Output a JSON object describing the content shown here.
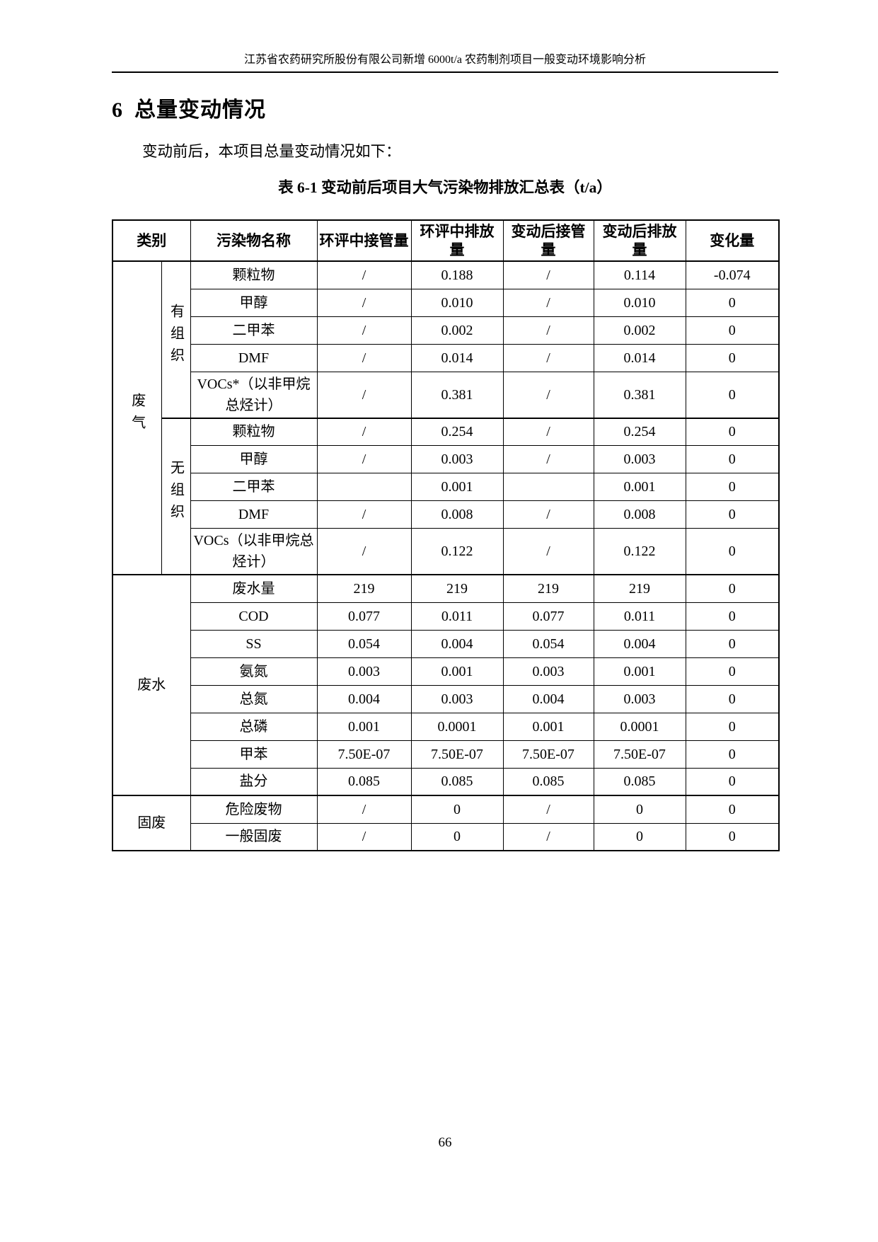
{
  "page_header": {
    "text": "江苏省农药研究所股份有限公司新增 6000t/a 农药制剂项目一般变动环境影响分析"
  },
  "section": {
    "number": "6",
    "title": "总量变动情况"
  },
  "intro_paragraph": "变动前后，本项目总量变动情况如下：",
  "table": {
    "caption": "表 6-1  变动前后项目大气污染物排放汇总表（t/a）",
    "columns": [
      "类别",
      "污染物名称",
      "环评中接管量",
      "环评中排放量",
      "变动后接管量",
      "变动后排放量",
      "变化量"
    ],
    "groups": [
      {
        "category": "废气",
        "vertical": true,
        "subgroups": [
          {
            "label": "有组织",
            "vertical": true,
            "rows": [
              {
                "name": "颗粒物",
                "values": [
                  "/",
                  "0.188",
                  "/",
                  "0.114",
                  "-0.074"
                ]
              },
              {
                "name": "甲醇",
                "values": [
                  "/",
                  "0.010",
                  "/",
                  "0.010",
                  "0"
                ]
              },
              {
                "name": "二甲苯",
                "values": [
                  "/",
                  "0.002",
                  "/",
                  "0.002",
                  "0"
                ]
              },
              {
                "name": "DMF",
                "values": [
                  "/",
                  "0.014",
                  "/",
                  "0.014",
                  "0"
                ]
              },
              {
                "name": "VOCs*（以非甲烷总烃计）",
                "values": [
                  "/",
                  "0.381",
                  "/",
                  "0.381",
                  "0"
                ]
              }
            ]
          },
          {
            "label": "无组织",
            "vertical": true,
            "rows": [
              {
                "name": "颗粒物",
                "values": [
                  "/",
                  "0.254",
                  "/",
                  "0.254",
                  "0"
                ]
              },
              {
                "name": "甲醇",
                "values": [
                  "/",
                  "0.003",
                  "/",
                  "0.003",
                  "0"
                ]
              },
              {
                "name": "二甲苯",
                "values": [
                  "",
                  "0.001",
                  "",
                  "0.001",
                  "0"
                ]
              },
              {
                "name": "DMF",
                "values": [
                  "/",
                  "0.008",
                  "/",
                  "0.008",
                  "0"
                ]
              },
              {
                "name": "VOCs（以非甲烷总烃计）",
                "values": [
                  "/",
                  "0.122",
                  "/",
                  "0.122",
                  "0"
                ]
              }
            ]
          }
        ]
      },
      {
        "category": "废水",
        "vertical": false,
        "rows": [
          {
            "name": "废水量",
            "values": [
              "219",
              "219",
              "219",
              "219",
              "0"
            ]
          },
          {
            "name": "COD",
            "values": [
              "0.077",
              "0.011",
              "0.077",
              "0.011",
              "0"
            ]
          },
          {
            "name": "SS",
            "values": [
              "0.054",
              "0.004",
              "0.054",
              "0.004",
              "0"
            ]
          },
          {
            "name": "氨氮",
            "values": [
              "0.003",
              "0.001",
              "0.003",
              "0.001",
              "0"
            ]
          },
          {
            "name": "总氮",
            "values": [
              "0.004",
              "0.003",
              "0.004",
              "0.003",
              "0"
            ]
          },
          {
            "name": "总磷",
            "values": [
              "0.001",
              "0.0001",
              "0.001",
              "0.0001",
              "0"
            ]
          },
          {
            "name": "甲苯",
            "values": [
              "7.50E-07",
              "7.50E-07",
              "7.50E-07",
              "7.50E-07",
              "0"
            ]
          },
          {
            "name": "盐分",
            "values": [
              "0.085",
              "0.085",
              "0.085",
              "0.085",
              "0"
            ]
          }
        ]
      },
      {
        "category": "固废",
        "vertical": false,
        "rows": [
          {
            "name": "危险废物",
            "values": [
              "/",
              "0",
              "/",
              "0",
              "0"
            ]
          },
          {
            "name": "一般固废",
            "values": [
              "/",
              "0",
              "/",
              "0",
              "0"
            ]
          }
        ]
      }
    ]
  },
  "page_number": "66",
  "colors": {
    "text": "#000000",
    "background": "#ffffff",
    "border": "#000000"
  }
}
